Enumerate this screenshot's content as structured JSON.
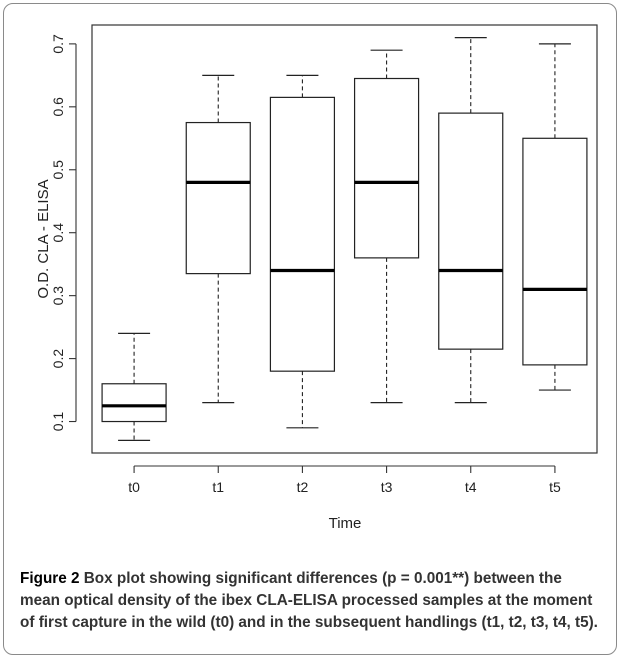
{
  "chart_data": {
    "type": "boxplot",
    "xlabel": "Time",
    "ylabel": "O.D. CLA - ELISA",
    "ylim": [
      0.05,
      0.73
    ],
    "yticks": [
      "0.1",
      "0.2",
      "0.3",
      "0.4",
      "0.5",
      "0.6",
      "0.7"
    ],
    "categories": [
      "t0",
      "t1",
      "t2",
      "t3",
      "t4",
      "t5"
    ],
    "boxes": [
      {
        "label": "t0",
        "min": 0.07,
        "q1": 0.1,
        "median": 0.125,
        "q3": 0.16,
        "max": 0.24
      },
      {
        "label": "t1",
        "min": 0.13,
        "q1": 0.335,
        "median": 0.48,
        "q3": 0.575,
        "max": 0.65
      },
      {
        "label": "t2",
        "min": 0.09,
        "q1": 0.18,
        "median": 0.34,
        "q3": 0.615,
        "max": 0.65
      },
      {
        "label": "t3",
        "min": 0.13,
        "q1": 0.36,
        "median": 0.48,
        "q3": 0.645,
        "max": 0.69
      },
      {
        "label": "t4",
        "min": 0.13,
        "q1": 0.215,
        "median": 0.34,
        "q3": 0.59,
        "max": 0.71
      },
      {
        "label": "t5",
        "min": 0.15,
        "q1": 0.19,
        "median": 0.31,
        "q3": 0.55,
        "max": 0.7
      }
    ],
    "grid": false,
    "legend": "none"
  },
  "caption": {
    "label": "Figure 2",
    "text": "Box plot showing significant differences (p = 0.001**) between the mean optical density of the ibex CLA-ELISA processed samples at the moment of first capture in the wild (t0) and in the subsequent handlings (t1, t2, t3, t4, t5)."
  }
}
